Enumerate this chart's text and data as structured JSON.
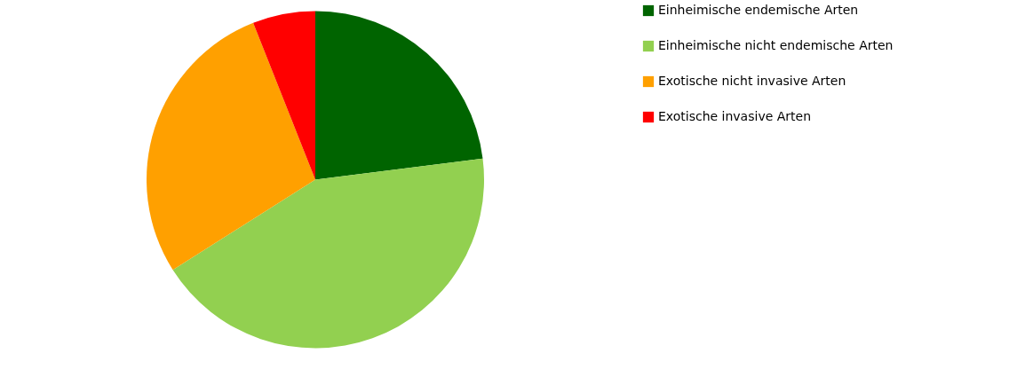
{
  "chart_data": {
    "type": "pie",
    "categories": [
      "Einheimische endemische Arten",
      "Einheimische nicht endemische Arten",
      "Exotische nicht invasive Arten",
      "Exotische invasive Arten"
    ],
    "values": [
      23,
      43,
      28,
      6
    ],
    "colors": [
      "#006400",
      "#92d050",
      "#ffa000",
      "#ff0000"
    ],
    "legend": "right"
  }
}
